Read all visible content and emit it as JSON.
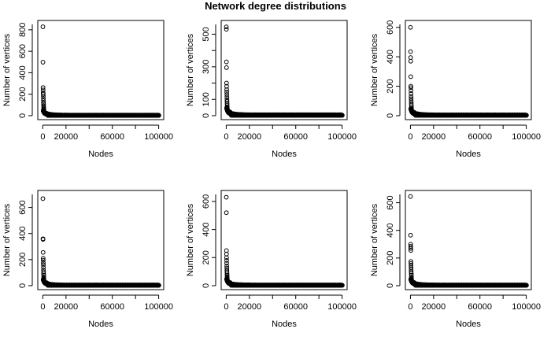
{
  "figure": {
    "title": "Network degree distributions"
  },
  "chart_data": [
    {
      "type": "scatter",
      "xlabel": "Nodes",
      "ylabel": "Number of vertices",
      "xlim": [
        0,
        100000
      ],
      "ylim": [
        0,
        850
      ],
      "xticks": [
        0,
        20000,
        60000,
        100000
      ],
      "xminor": [
        40000,
        80000
      ],
      "yticks": [
        0,
        200,
        400,
        600,
        800
      ],
      "peaks": [
        828,
        498,
        262,
        240,
        215,
        200,
        182,
        160,
        140,
        120,
        108,
        95,
        82,
        70,
        60,
        52,
        45
      ],
      "tail": {
        "start": 30,
        "decay": 0.0002,
        "floor": 2
      }
    },
    {
      "type": "scatter",
      "xlabel": "Nodes",
      "ylabel": "Number of vertices",
      "xlim": [
        0,
        100000
      ],
      "ylim": [
        0,
        560
      ],
      "xticks": [
        0,
        20000,
        60000,
        100000
      ],
      "xminor": [
        40000,
        80000
      ],
      "yticks": [
        0,
        100,
        300,
        500
      ],
      "yminor": [
        200,
        400
      ],
      "peaks": [
        545,
        530,
        330,
        295,
        200,
        180,
        160,
        145,
        130,
        115,
        100,
        88,
        76,
        65,
        55,
        47,
        40
      ],
      "tail": {
        "start": 25,
        "decay": 0.0002,
        "floor": 2
      }
    },
    {
      "type": "scatter",
      "xlabel": "Nodes",
      "ylabel": "Number of vertices",
      "xlim": [
        0,
        100000
      ],
      "ylim": [
        0,
        620
      ],
      "xticks": [
        0,
        20000,
        60000,
        100000
      ],
      "xminor": [
        40000,
        80000
      ],
      "yticks": [
        0,
        200,
        400,
        600
      ],
      "peaks": [
        600,
        435,
        395,
        370,
        265,
        200,
        190,
        170,
        150,
        130,
        115,
        100,
        85,
        72,
        60,
        50,
        42
      ],
      "tail": {
        "start": 28,
        "decay": 0.0002,
        "floor": 2
      }
    },
    {
      "type": "scatter",
      "xlabel": "Nodes",
      "ylabel": "Number of vertices",
      "xlim": [
        0,
        100000
      ],
      "ylim": [
        0,
        700
      ],
      "xticks": [
        0,
        20000,
        60000,
        100000
      ],
      "xminor": [
        40000,
        80000
      ],
      "yticks": [
        0,
        200,
        400,
        600
      ],
      "peaks": [
        668,
        360,
        355,
        255,
        210,
        195,
        175,
        160,
        140,
        120,
        105,
        92,
        80,
        68,
        58,
        50,
        42
      ],
      "tail": {
        "start": 25,
        "decay": 0.0002,
        "floor": 2
      }
    },
    {
      "type": "scatter",
      "xlabel": "Nodes",
      "ylabel": "Number of vertices",
      "xlim": [
        0,
        100000
      ],
      "ylim": [
        0,
        650
      ],
      "xticks": [
        0,
        20000,
        60000,
        100000
      ],
      "xminor": [
        40000,
        80000
      ],
      "yticks": [
        0,
        200,
        400,
        600
      ],
      "peaks": [
        630,
        520,
        250,
        225,
        200,
        180,
        160,
        140,
        125,
        110,
        97,
        85,
        74,
        64,
        55,
        47,
        40
      ],
      "tail": {
        "start": 22,
        "decay": 0.0002,
        "floor": 2
      }
    },
    {
      "type": "scatter",
      "xlabel": "Nodes",
      "ylabel": "Number of vertices",
      "xlim": [
        0,
        100000
      ],
      "ylim": [
        0,
        660
      ],
      "xticks": [
        0,
        20000,
        60000,
        100000
      ],
      "xminor": [
        40000,
        80000
      ],
      "yticks": [
        0,
        200,
        400,
        600
      ],
      "peaks": [
        645,
        365,
        300,
        285,
        270,
        255,
        175,
        160,
        145,
        130,
        115,
        100,
        88,
        76,
        65,
        55,
        46
      ],
      "tail": {
        "start": 26,
        "decay": 0.0002,
        "floor": 2
      }
    }
  ]
}
